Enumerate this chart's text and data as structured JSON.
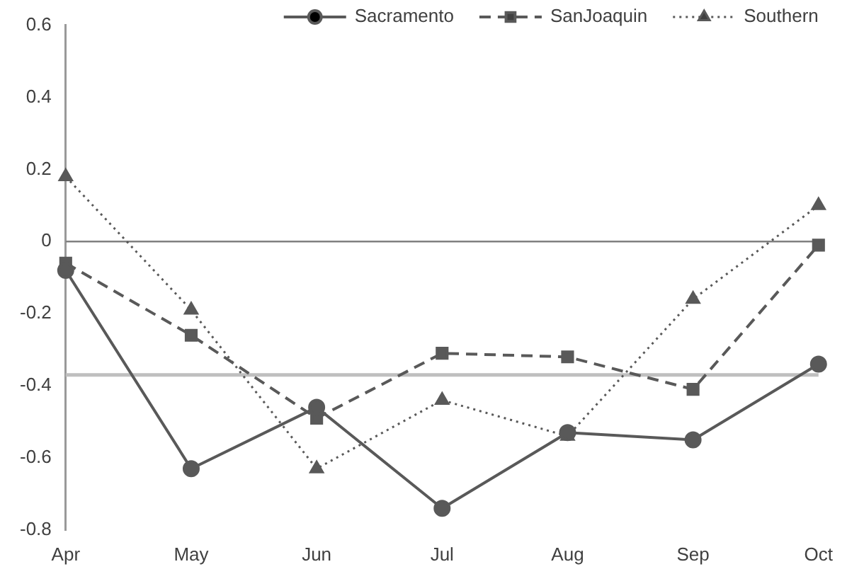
{
  "chart_data": {
    "type": "line",
    "categories": [
      "Apr",
      "May",
      "Jun",
      "Jul",
      "Aug",
      "Sep",
      "Oct"
    ],
    "series": [
      {
        "name": "Sacramento",
        "color": "#595959",
        "marker": "circle",
        "line_style": "solid",
        "values": [
          -0.08,
          -0.63,
          -0.46,
          -0.74,
          -0.53,
          -0.55,
          -0.34
        ]
      },
      {
        "name": "SanJoaquin",
        "color": "#595959",
        "marker": "square",
        "line_style": "dashed",
        "values": [
          -0.06,
          -0.26,
          -0.49,
          -0.31,
          -0.32,
          -0.41,
          -0.01
        ]
      },
      {
        "name": "Southern",
        "color": "#595959",
        "marker": "triangle",
        "line_style": "dotted",
        "values": [
          0.18,
          -0.19,
          -0.63,
          -0.44,
          -0.54,
          -0.16,
          0.1
        ]
      }
    ],
    "ylim": [
      -0.8,
      0.6
    ],
    "yticks": [
      -0.8,
      -0.6,
      -0.4,
      -0.2,
      0,
      0.2,
      0.4,
      0.6
    ],
    "ref_lines": [
      {
        "axis": "y",
        "value": 0,
        "color": "#808080"
      },
      {
        "axis": "y",
        "value": -0.37,
        "color": "#bfbfbf"
      }
    ],
    "grid": false,
    "legend": "top right"
  }
}
